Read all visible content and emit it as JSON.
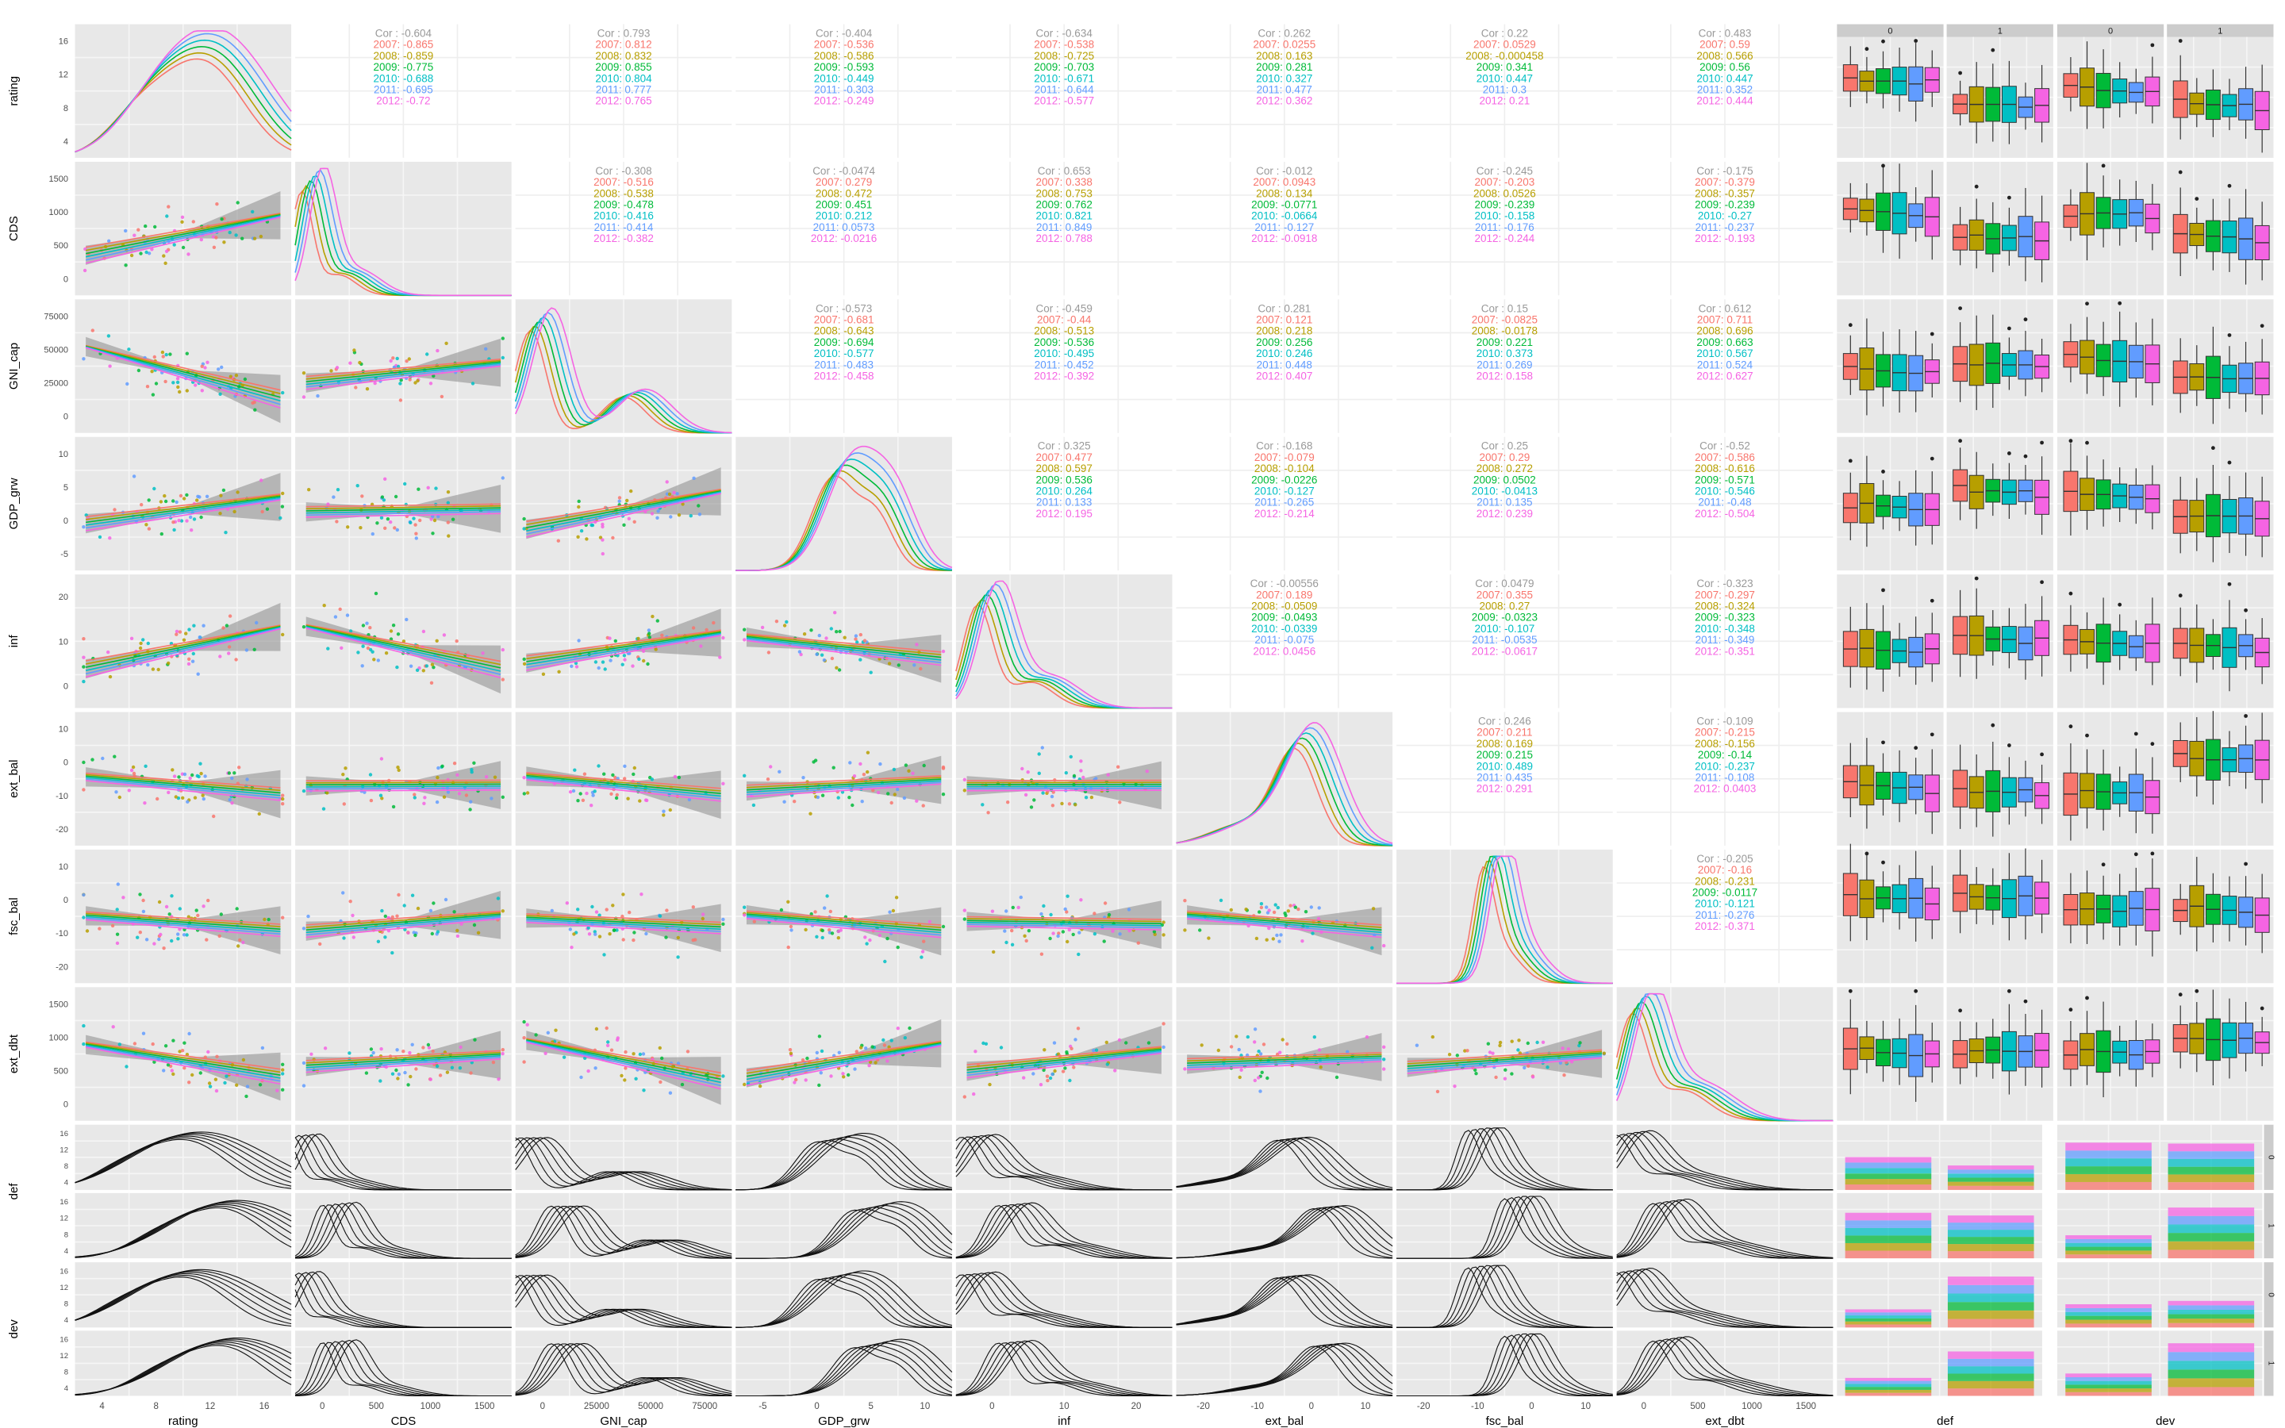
{
  "chart_data": {
    "type": "scatter-matrix",
    "variables": [
      "rating",
      "CDS",
      "GNI_cap",
      "GDP_grw",
      "inf",
      "ext_bal",
      "fsc_bal",
      "ext_dbt",
      "def",
      "dev"
    ],
    "years": [
      "2007",
      "2008",
      "2009",
      "2010",
      "2011",
      "2012"
    ],
    "year_colors": [
      "#F8766D",
      "#B79F00",
      "#00BA38",
      "#00BFC4",
      "#619CFF",
      "#F564E3"
    ],
    "cor_colors": [
      "#F8766D",
      "#B79F00",
      "#00BA38",
      "#00BFC4",
      "#619CFF",
      "#F564E3"
    ],
    "axis_ticks": {
      "rating": {
        "x": [
          "4",
          "8",
          "12",
          "16"
        ],
        "y": [
          "4",
          "8",
          "12",
          "16"
        ]
      },
      "CDS": {
        "x": [
          "0",
          "500",
          "1000",
          "1500"
        ],
        "y": [
          "0",
          "500",
          "1000",
          "1500"
        ]
      },
      "GNI_cap": {
        "x": [
          "0",
          "25000",
          "50000",
          "75000"
        ],
        "y": [
          "0",
          "25000",
          "50000",
          "75000"
        ]
      },
      "GDP_grw": {
        "x": [
          "-5",
          "0",
          "5",
          "10"
        ],
        "y": [
          "-5",
          "0",
          "5",
          "10"
        ]
      },
      "inf": {
        "x": [
          "0",
          "10",
          "20"
        ],
        "y": [
          "0",
          "10",
          "20"
        ]
      },
      "ext_bal": {
        "x": [
          "-20",
          "-10",
          "0",
          "10"
        ],
        "y": [
          "-20",
          "-10",
          "0",
          "10"
        ]
      },
      "fsc_bal": {
        "x": [
          "-20",
          "-10",
          "0",
          "10"
        ],
        "y": [
          "-20",
          "-10",
          "0",
          "10"
        ]
      },
      "ext_dbt": {
        "x": [
          "0",
          "500",
          "1000",
          "1500"
        ],
        "y": [
          "0",
          "500",
          "1000",
          "1500"
        ]
      }
    },
    "correlations": [
      {
        "row": "rating",
        "col": "CDS",
        "overall": "-0.604",
        "by_year": [
          "-0.865",
          "-0.859",
          "-0.775",
          "-0.688",
          "-0.695",
          "-0.72"
        ]
      },
      {
        "row": "rating",
        "col": "GNI_cap",
        "overall": "0.793",
        "by_year": [
          "0.812",
          "0.832",
          "0.855",
          "0.804",
          "0.777",
          "0.765"
        ]
      },
      {
        "row": "rating",
        "col": "GDP_grw",
        "overall": "-0.404",
        "by_year": [
          "-0.536",
          "-0.586",
          "-0.593",
          "-0.449",
          "-0.303",
          "-0.249"
        ]
      },
      {
        "row": "rating",
        "col": "inf",
        "overall": "-0.634",
        "by_year": [
          "-0.538",
          "-0.725",
          "-0.703",
          "-0.671",
          "-0.644",
          "-0.577"
        ]
      },
      {
        "row": "rating",
        "col": "ext_bal",
        "overall": "0.262",
        "by_year": [
          "0.0255",
          "0.163",
          "0.281",
          "0.327",
          "0.477",
          "0.362"
        ]
      },
      {
        "row": "rating",
        "col": "fsc_bal",
        "overall": "0.22",
        "by_year": [
          "0.0529",
          "-0.000458",
          "0.341",
          "0.447",
          "0.3",
          "0.21"
        ]
      },
      {
        "row": "rating",
        "col": "ext_dbt",
        "overall": "0.483",
        "by_year": [
          "0.59",
          "0.566",
          "0.56",
          "0.447",
          "0.352",
          "0.444"
        ]
      },
      {
        "row": "CDS",
        "col": "GNI_cap",
        "overall": "-0.308",
        "by_year": [
          "-0.516",
          "-0.538",
          "-0.478",
          "-0.416",
          "-0.414",
          "-0.382"
        ]
      },
      {
        "row": "CDS",
        "col": "GDP_grw",
        "overall": "-0.0474",
        "by_year": [
          "0.279",
          "0.472",
          "0.451",
          "0.212",
          "0.0573",
          "-0.0216"
        ]
      },
      {
        "row": "CDS",
        "col": "inf",
        "overall": "0.653",
        "by_year": [
          "0.338",
          "0.753",
          "0.762",
          "0.821",
          "0.849",
          "0.788"
        ]
      },
      {
        "row": "CDS",
        "col": "ext_bal",
        "overall": "-0.012",
        "by_year": [
          "0.0943",
          "0.134",
          "-0.0771",
          "-0.0664",
          "-0.127",
          "-0.0918"
        ]
      },
      {
        "row": "CDS",
        "col": "fsc_bal",
        "overall": "-0.245",
        "by_year": [
          "-0.203",
          "0.0526",
          "-0.239",
          "-0.158",
          "-0.176",
          "-0.244"
        ]
      },
      {
        "row": "CDS",
        "col": "ext_dbt",
        "overall": "-0.175",
        "by_year": [
          "-0.379",
          "-0.357",
          "-0.239",
          "-0.27",
          "-0.237",
          "-0.193"
        ]
      },
      {
        "row": "GNI_cap",
        "col": "GDP_grw",
        "overall": "-0.573",
        "by_year": [
          "-0.681",
          "-0.643",
          "-0.694",
          "-0.577",
          "-0.483",
          "-0.458"
        ]
      },
      {
        "row": "GNI_cap",
        "col": "inf",
        "overall": "-0.459",
        "by_year": [
          "-0.44",
          "-0.513",
          "-0.536",
          "-0.495",
          "-0.452",
          "-0.392"
        ]
      },
      {
        "row": "GNI_cap",
        "col": "ext_bal",
        "overall": "0.281",
        "by_year": [
          "0.121",
          "0.218",
          "0.256",
          "0.246",
          "0.448",
          "0.407"
        ]
      },
      {
        "row": "GNI_cap",
        "col": "fsc_bal",
        "overall": "0.15",
        "by_year": [
          "-0.0825",
          "-0.0178",
          "0.221",
          "0.373",
          "0.269",
          "0.158"
        ]
      },
      {
        "row": "GNI_cap",
        "col": "ext_dbt",
        "overall": "0.612",
        "by_year": [
          "0.711",
          "0.696",
          "0.663",
          "0.567",
          "0.524",
          "0.627"
        ]
      },
      {
        "row": "GDP_grw",
        "col": "inf",
        "overall": "0.325",
        "by_year": [
          "0.477",
          "0.597",
          "0.536",
          "0.264",
          "0.133",
          "0.195"
        ]
      },
      {
        "row": "GDP_grw",
        "col": "ext_bal",
        "overall": "-0.168",
        "by_year": [
          "-0.079",
          "-0.104",
          "-0.0226",
          "-0.127",
          "-0.265",
          "-0.214"
        ]
      },
      {
        "row": "GDP_grw",
        "col": "fsc_bal",
        "overall": "0.25",
        "by_year": [
          "0.29",
          "0.272",
          "0.0502",
          "-0.0413",
          "0.135",
          "0.239"
        ]
      },
      {
        "row": "GDP_grw",
        "col": "ext_dbt",
        "overall": "-0.52",
        "by_year": [
          "-0.586",
          "-0.616",
          "-0.571",
          "-0.546",
          "-0.48",
          "-0.504"
        ]
      },
      {
        "row": "inf",
        "col": "ext_bal",
        "overall": "-0.00556",
        "by_year": [
          "0.189",
          "-0.0509",
          "-0.0493",
          "-0.0339",
          "-0.075",
          "0.0456"
        ]
      },
      {
        "row": "inf",
        "col": "fsc_bal",
        "overall": "0.0479",
        "by_year": [
          "0.355",
          "0.27",
          "-0.0323",
          "-0.107",
          "-0.0535",
          "-0.0617"
        ]
      },
      {
        "row": "inf",
        "col": "ext_dbt",
        "overall": "-0.323",
        "by_year": [
          "-0.297",
          "-0.324",
          "-0.323",
          "-0.348",
          "-0.349",
          "-0.351"
        ]
      },
      {
        "row": "ext_bal",
        "col": "fsc_bal",
        "overall": "0.246",
        "by_year": [
          "0.211",
          "0.169",
          "0.215",
          "0.489",
          "0.435",
          "0.291"
        ]
      },
      {
        "row": "ext_bal",
        "col": "ext_dbt",
        "overall": "-0.109",
        "by_year": [
          "-0.215",
          "-0.156",
          "-0.14",
          "-0.237",
          "-0.108",
          "0.0403"
        ]
      },
      {
        "row": "fsc_bal",
        "col": "ext_dbt",
        "overall": "-0.205",
        "by_year": [
          "-0.16",
          "-0.231",
          "-0.0117",
          "-0.121",
          "-0.276",
          "-0.371"
        ]
      }
    ],
    "factor_levels": {
      "def": [
        "0",
        "1"
      ],
      "dev": [
        "0",
        "1"
      ]
    },
    "cor_prefix": "Cor : ",
    "grid": true
  }
}
